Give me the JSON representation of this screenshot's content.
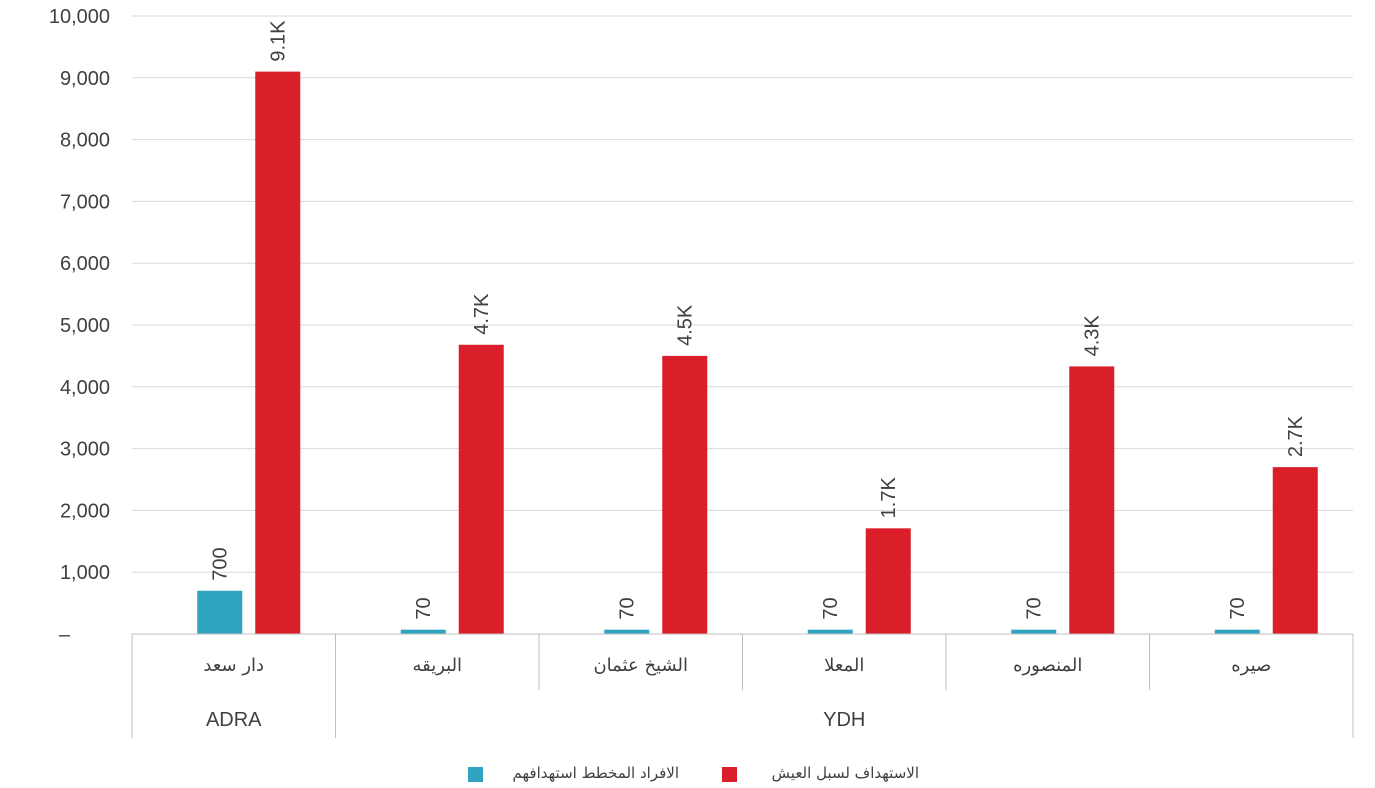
{
  "chart_data": {
    "type": "bar",
    "title": "",
    "xlabel": "",
    "ylabel": "",
    "ylim": [
      0,
      10000
    ],
    "yticks": [
      0,
      1000,
      2000,
      3000,
      4000,
      5000,
      6000,
      7000,
      8000,
      9000,
      10000
    ],
    "ytick_labels": [
      "–",
      "1,000",
      "2,000",
      "3,000",
      "4,000",
      "5,000",
      "6,000",
      "7,000",
      "8,000",
      "9,000",
      "10,000"
    ],
    "grid": true,
    "legend_position": "bottom",
    "categories": [
      "دار سعد",
      "البريقه",
      "الشيخ عثمان",
      "المعلا",
      "المنصوره",
      "صيره"
    ],
    "groups": [
      {
        "label": "ADRA",
        "categories": [
          "دار سعد"
        ]
      },
      {
        "label": "YDH",
        "categories": [
          "البريقه",
          "الشيخ عثمان",
          "المعلا",
          "المنصوره",
          "صيره"
        ]
      }
    ],
    "series": [
      {
        "name": "الافراد المخطط استهدافهم",
        "color": "#2ea4c0",
        "values": [
          700,
          70,
          70,
          70,
          70,
          70
        ],
        "labels": [
          "700",
          "70",
          "70",
          "70",
          "70",
          "70"
        ]
      },
      {
        "name": "الاستهداف لسبل العيش",
        "color": "#da1f2b",
        "values": [
          9100,
          4680,
          4500,
          1710,
          4330,
          2700
        ],
        "labels": [
          "9.1K",
          "4.7K",
          "4.5K",
          "1.7K",
          "4.3K",
          "2.7K"
        ]
      }
    ]
  }
}
